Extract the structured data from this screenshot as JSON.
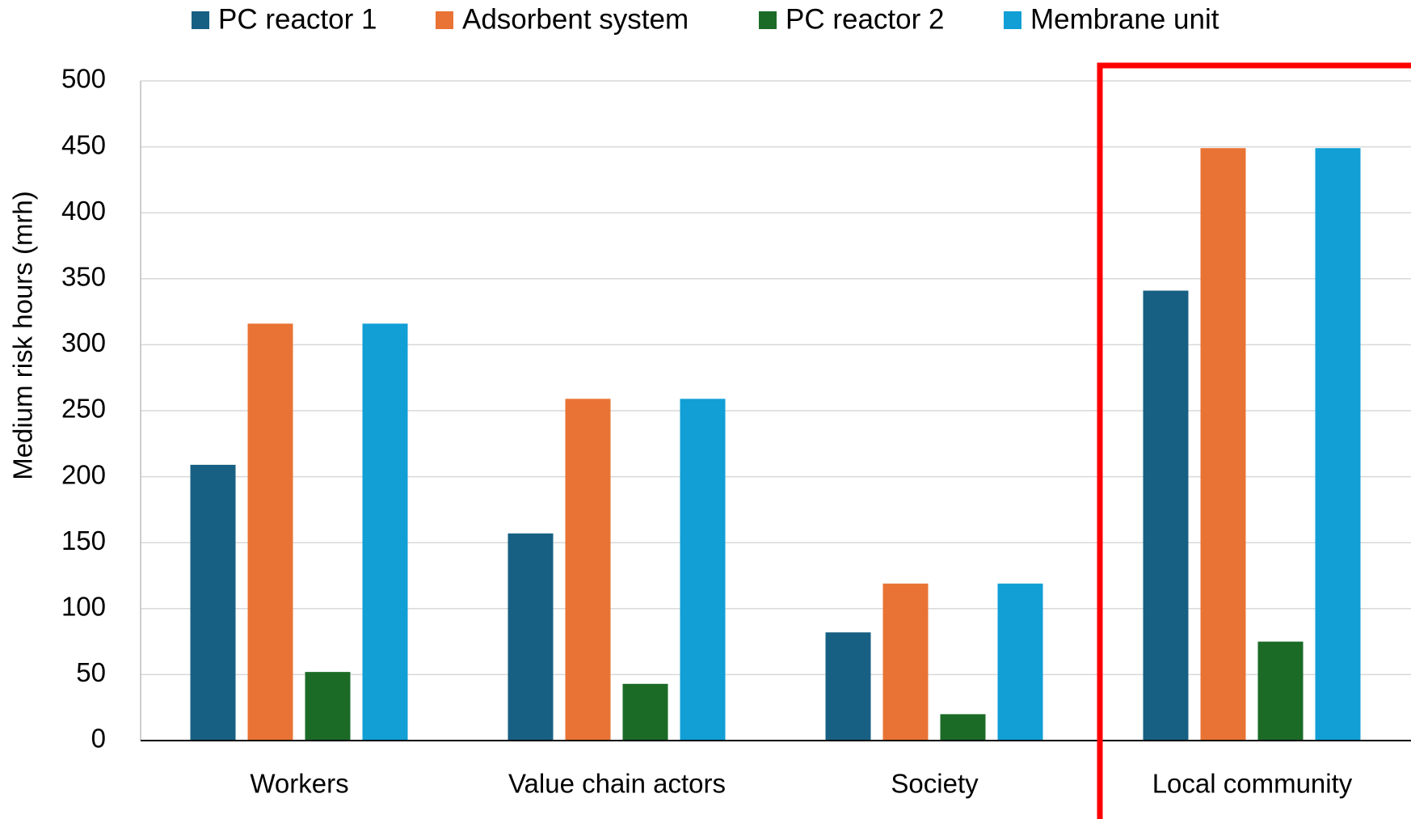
{
  "chart_data": {
    "type": "bar",
    "y_label": "Medium risk hours (mrh)",
    "categories": [
      "Workers",
      "Value chain actors",
      "Society",
      "Local community"
    ],
    "series": [
      {
        "name": "PC reactor 1",
        "color": "#176083",
        "values": [
          209,
          157,
          82,
          341
        ]
      },
      {
        "name": "Adsorbent system",
        "color": "#e97334",
        "values": [
          316,
          259,
          119,
          449
        ]
      },
      {
        "name": "PC reactor 2",
        "color": "#1b6b27",
        "values": [
          52,
          43,
          20,
          75
        ]
      },
      {
        "name": "Membrane unit",
        "color": "#119fd6",
        "values": [
          316,
          259,
          119,
          449
        ]
      }
    ],
    "ylim": [
      0,
      500
    ],
    "yticks": [
      0,
      50,
      100,
      150,
      200,
      250,
      300,
      350,
      400,
      450,
      500
    ],
    "grid": true,
    "legend": "top"
  }
}
